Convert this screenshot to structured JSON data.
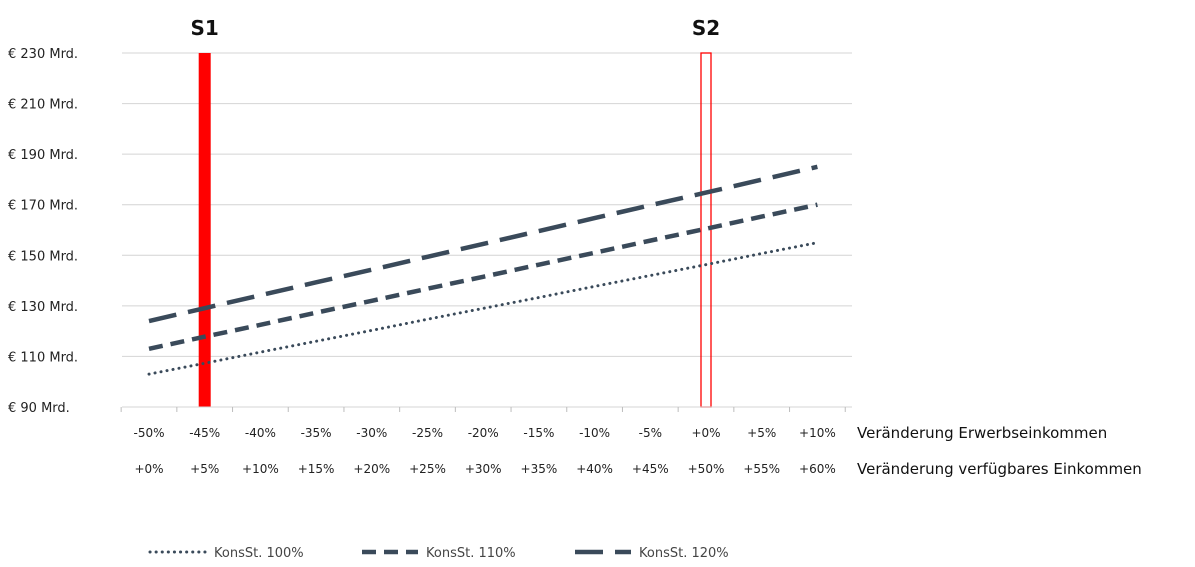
{
  "chart_data": {
    "type": "line",
    "title": "",
    "ylabel": "",
    "ylim": [
      90,
      230
    ],
    "y_ticks": [
      90,
      110,
      130,
      150,
      170,
      190,
      210,
      230
    ],
    "y_tick_labels": [
      "€ 90 Mrd.",
      "€ 110 Mrd.",
      "€ 130 Mrd.",
      "€ 150 Mrd.",
      "€ 170 Mrd.",
      "€ 190 Mrd.",
      "€ 210 Mrd.",
      "€ 230 Mrd."
    ],
    "x_axes": [
      {
        "title": "Veränderung Erwerbseinkommen",
        "labels": [
          "-50%",
          "-45%",
          "-40%",
          "-35%",
          "-30%",
          "-25%",
          "-20%",
          "-15%",
          "-10%",
          "-5%",
          "+0%",
          "+5%",
          "+10%"
        ]
      },
      {
        "title": "Veränderung verfügbares Einkommen",
        "labels": [
          "+0%",
          "+5%",
          "+10%",
          "+15%",
          "+20%",
          "+25%",
          "+30%",
          "+35%",
          "+40%",
          "+45%",
          "+50%",
          "+55%",
          "+60%"
        ]
      }
    ],
    "x": [
      -50,
      -45,
      -40,
      -35,
      -30,
      -25,
      -20,
      -15,
      -10,
      -5,
      0,
      5,
      10
    ],
    "series": [
      {
        "name": "KonsSt. 100%",
        "style": "dotted",
        "color": "#3a4a5a",
        "values": [
          103,
          107.3,
          111.7,
          116,
          120.3,
          124.7,
          129,
          133.3,
          137.7,
          142,
          146.3,
          150.7,
          155
        ]
      },
      {
        "name": "KonsSt. 110%",
        "style": "dashed",
        "color": "#3a4a5a",
        "values": [
          113,
          117.8,
          122.5,
          127.3,
          132,
          136.8,
          141.5,
          146.3,
          151,
          155.8,
          160.5,
          165.3,
          170
        ]
      },
      {
        "name": "KonsSt. 120%",
        "style": "long-dashed",
        "color": "#3a4a5a",
        "values": [
          124,
          129.1,
          134.2,
          139.3,
          144.3,
          149.4,
          154.5,
          159.6,
          164.7,
          169.8,
          174.8,
          179.9,
          185
        ]
      }
    ],
    "markers": [
      {
        "label": "S1",
        "x": -45,
        "style": "filled",
        "color": "#ff0000"
      },
      {
        "label": "S2",
        "x": 0,
        "style": "outline",
        "color": "#ff0000"
      }
    ],
    "legend_position": "bottom-left",
    "grid": "horizontal"
  }
}
